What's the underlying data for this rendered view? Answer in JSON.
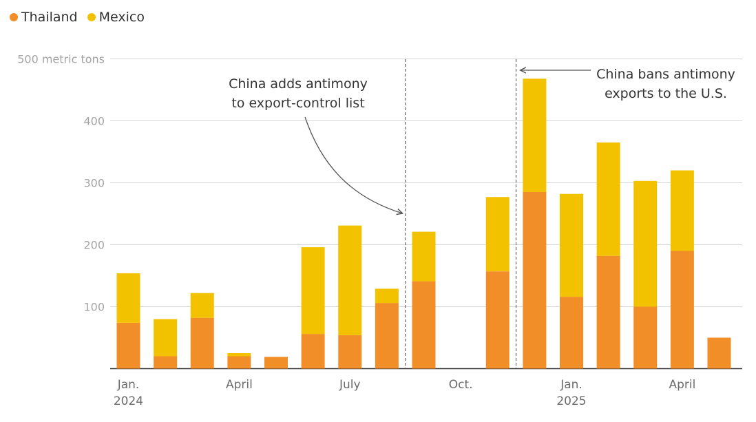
{
  "legend": {
    "items": [
      {
        "label": "Thailand",
        "color": "#F28E28"
      },
      {
        "label": "Mexico",
        "color": "#F2C200"
      }
    ]
  },
  "chart_data": {
    "type": "bar",
    "stacked": true,
    "y_unit_label": "500 metric tons",
    "ylim": [
      0,
      500
    ],
    "yticks": [
      100,
      200,
      300,
      400,
      500
    ],
    "grid": true,
    "legend_position": "top-left",
    "months": [
      "2024-01",
      "2024-02",
      "2024-03",
      "2024-04",
      "2024-05",
      "2024-06",
      "2024-07",
      "2024-08",
      "2024-09",
      "2024-10",
      "2024-11",
      "2024-12",
      "2025-01",
      "2025-02",
      "2025-03",
      "2025-04",
      "2025-05"
    ],
    "series": [
      {
        "name": "Thailand",
        "color": "#F28E28",
        "values": [
          74,
          20,
          82,
          20,
          19,
          56,
          54,
          106,
          141,
          0,
          157,
          285,
          116,
          182,
          100,
          190,
          50
        ]
      },
      {
        "name": "Mexico",
        "color": "#F2C200",
        "values": [
          80,
          60,
          40,
          5,
          0,
          140,
          177,
          23,
          80,
          0,
          120,
          183,
          166,
          183,
          203,
          130,
          0
        ]
      }
    ],
    "x_tick_labels": [
      {
        "month": "2024-01",
        "line1": "Jan.",
        "line2": "2024"
      },
      {
        "month": "2024-04",
        "line1": "April",
        "line2": ""
      },
      {
        "month": "2024-07",
        "line1": "July",
        "line2": ""
      },
      {
        "month": "2024-10",
        "line1": "Oct.",
        "line2": ""
      },
      {
        "month": "2025-01",
        "line1": "Jan.",
        "line2": "2025"
      },
      {
        "month": "2025-04",
        "line1": "April",
        "line2": ""
      }
    ],
    "annotations": [
      {
        "lines": [
          "China adds antimony",
          "to export-control list"
        ]
      },
      {
        "lines": [
          "China bans antimony",
          "exports to the U.S."
        ]
      }
    ]
  }
}
